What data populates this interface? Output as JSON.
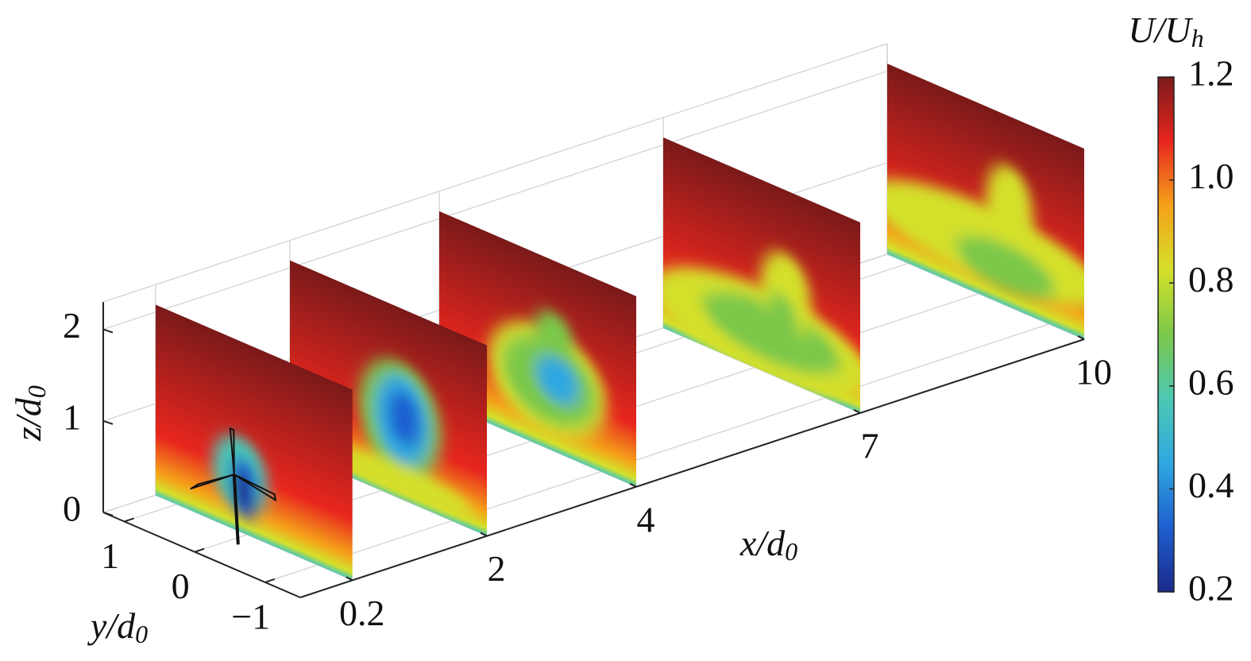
{
  "chart_data": {
    "type": "slices3d",
    "x_label": {
      "text": "x/d",
      "sub": "0"
    },
    "y_label": {
      "text": "y/d",
      "sub": "0"
    },
    "z_label": {
      "text": "z/d",
      "sub": "0"
    },
    "colorbar_label": {
      "text": "U/U",
      "sub": "h"
    },
    "xlim": [
      -0.5,
      10
    ],
    "ylim": [
      -1.5,
      1.3
    ],
    "zlim": [
      0,
      2.3
    ],
    "xticks": [
      0.2,
      2,
      4,
      7,
      10
    ],
    "yticks": [
      1,
      0,
      {
        "value": -1,
        "label": "−1"
      }
    ],
    "zticks": [
      0,
      1,
      2
    ],
    "slices": [
      0.2,
      2,
      4,
      7,
      10
    ],
    "clim": [
      0.2,
      1.2
    ],
    "cticks": [
      0.2,
      0.4,
      0.6,
      0.8,
      {
        "value": 1,
        "label": "1.0"
      },
      1.2
    ],
    "colormap": [
      "#1b2a8a",
      "#1f5fd0",
      "#2fa8e0",
      "#4cc8b4",
      "#7cc84a",
      "#d4e02a",
      "#f5a21a",
      "#e8261e",
      "#7a1a1a"
    ],
    "grid": true
  }
}
